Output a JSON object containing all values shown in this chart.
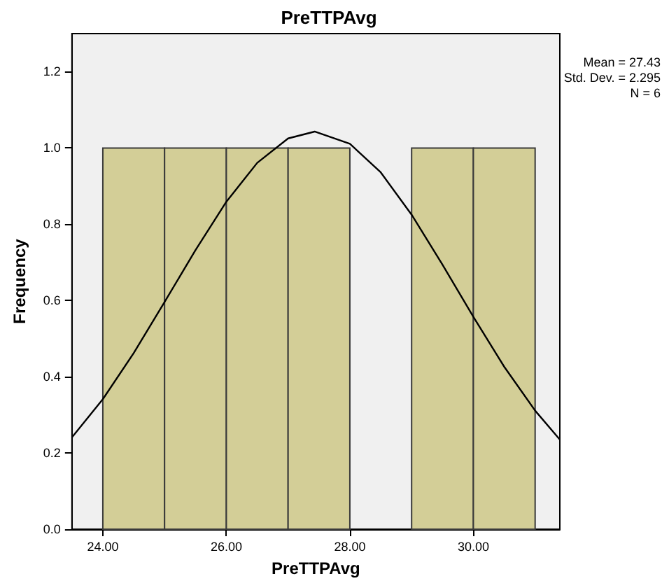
{
  "chart_data": {
    "type": "histogram",
    "title": "PreTTPAvg",
    "xlabel": "PreTTPAvg",
    "ylabel": "Frequency",
    "bins": [
      24,
      25,
      26,
      27,
      28,
      29,
      30,
      31
    ],
    "values": [
      1,
      1,
      1,
      1,
      0,
      1,
      1
    ],
    "color": "#d3ce97",
    "series": [
      {
        "type": "line",
        "color": "#000000",
        "marker": "none",
        "x": [
          23.5,
          24,
          24.5,
          25,
          25.5,
          26,
          26.5,
          27,
          27.43,
          28,
          28.5,
          29,
          29.5,
          30,
          30.5,
          31,
          31.4
        ],
        "values": [
          0.241,
          0.341,
          0.462,
          0.596,
          0.732,
          0.859,
          0.961,
          1.025,
          1.043,
          1.011,
          0.936,
          0.825,
          0.694,
          0.557,
          0.426,
          0.311,
          0.235
        ]
      }
    ],
    "xlim": [
      23.5,
      31.4
    ],
    "xticks": [
      {
        "value": 24,
        "label": "24.00"
      },
      {
        "value": 26,
        "label": "26.00"
      },
      {
        "value": 28,
        "label": "28.00"
      },
      {
        "value": 30,
        "label": "30.00"
      }
    ],
    "ylim": [
      0,
      1.3
    ],
    "yticks": [
      {
        "value": 0,
        "label": "0.0"
      },
      {
        "value": 0.2,
        "label": "0.2"
      },
      {
        "value": 0.4,
        "label": "0.4"
      },
      {
        "value": 0.6,
        "label": "0.6"
      },
      {
        "value": 0.8,
        "label": "0.8"
      },
      {
        "value": 1,
        "label": "1.0"
      },
      {
        "value": 1.2,
        "label": "1.2"
      }
    ],
    "annotations": [
      "Mean = 27.43",
      "Std. Dev. = 2.295",
      "N = 6"
    ],
    "grid": false
  }
}
